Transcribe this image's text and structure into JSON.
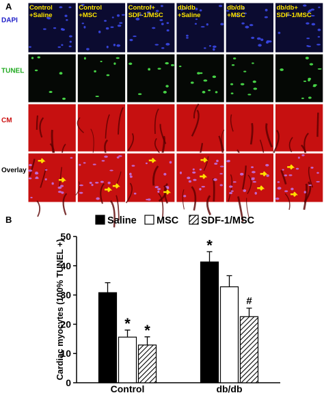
{
  "panel_a": {
    "label": "A",
    "columns": [
      [
        "Control",
        "+Saline"
      ],
      [
        "Control",
        "+MSC"
      ],
      [
        "Control+",
        "SDF-1/MSC"
      ],
      [
        "db/db",
        "+Saline"
      ],
      [
        "db/db",
        "+MSC"
      ],
      [
        "db/db+",
        "SDF-1/MSC"
      ]
    ],
    "rows": [
      {
        "label": "DAPI",
        "color": "#1c1cc8"
      },
      {
        "label": "TUNEL",
        "color": "#22aa22"
      },
      {
        "label": "CM",
        "color": "#cc1111"
      },
      {
        "label": "Overlay",
        "color": "#000000"
      }
    ]
  },
  "chart_data": {
    "type": "bar",
    "label": "B",
    "ylabel": "Cardiac myocytes (100% TUNEL +)",
    "categories": [
      "Control",
      "db/db"
    ],
    "series": [
      {
        "name": "Saline",
        "color": "#000000",
        "values": [
          30.8,
          41.3
        ],
        "errors": [
          3.4,
          3.5
        ],
        "markers": [
          null,
          "*"
        ]
      },
      {
        "name": "MSC",
        "color": "#ffffff",
        "values": [
          15.6,
          32.8
        ],
        "errors": [
          2.4,
          3.8
        ],
        "markers": [
          "*",
          null
        ]
      },
      {
        "name": "SDF-1/MSC",
        "color": "#ffffff",
        "hatch": true,
        "values": [
          12.9,
          22.6
        ],
        "errors": [
          2.8,
          2.9
        ],
        "markers": [
          "*",
          "#"
        ]
      }
    ],
    "ylim": [
      0,
      50
    ],
    "yticks": [
      0,
      10,
      20,
      30,
      40,
      50
    ]
  }
}
